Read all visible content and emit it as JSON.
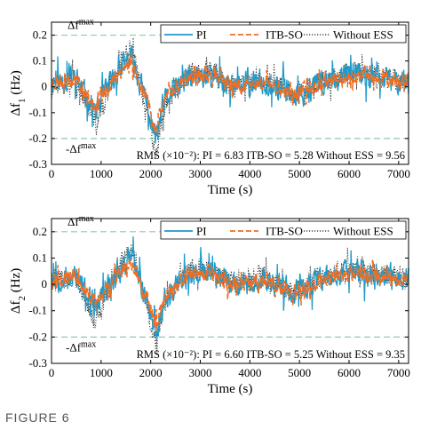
{
  "figure_label": "FIGURE 6",
  "chart_data": [
    {
      "type": "line",
      "xlabel": "Time (s)",
      "ylabel_main": "Δf",
      "ylabel_sub": "1",
      "ylabel_unit": " (Hz)",
      "xlim": [
        0,
        7200
      ],
      "ylim": [
        -0.3,
        0.25
      ],
      "xticks": [
        0,
        1000,
        2000,
        3000,
        4000,
        5000,
        6000,
        7000
      ],
      "yticks": [
        -0.3,
        -0.2,
        -0.1,
        0,
        0.1,
        0.2
      ],
      "ytick_labels": [
        "-0.3",
        "-0.2",
        "-0.1",
        "0",
        "0.1",
        "0.2"
      ],
      "grid": false,
      "legend_position": "top-right",
      "limit_value": 0.2,
      "limit_label_upper": "Δf",
      "limit_label_lower": "-Δf",
      "limit_sup": "max",
      "rms_text": "RMS (×10⁻²): PI = 6.83  ITB-SO = 5.28  Without ESS = 9.56",
      "series": [
        {
          "name": "PI",
          "color": "#1f9ac9",
          "style": "solid",
          "amplitude": 0.065,
          "seed": 11,
          "x": [
            0,
            500,
            900,
            1000,
            1300,
            1600,
            1900,
            2100,
            2300,
            2700,
            3200,
            3700,
            4300,
            4900,
            5500,
            6100,
            6600,
            7200
          ],
          "y": [
            0.02,
            0.03,
            -0.1,
            -0.05,
            0.05,
            0.12,
            -0.05,
            -0.2,
            -0.05,
            0.03,
            0.05,
            0.0,
            0.02,
            -0.03,
            0.02,
            0.05,
            0.03,
            0.02
          ]
        },
        {
          "name": "ITB-SO",
          "color": "#f26d21",
          "style": "dashed",
          "amplitude": 0.04,
          "seed": 23,
          "x": [
            0,
            500,
            900,
            1000,
            1300,
            1600,
            1900,
            2100,
            2300,
            2700,
            3200,
            3700,
            4300,
            4900,
            5500,
            6100,
            6600,
            7200
          ],
          "y": [
            0.02,
            0.03,
            -0.08,
            -0.04,
            0.04,
            0.1,
            -0.04,
            -0.17,
            -0.04,
            0.03,
            0.04,
            0.0,
            0.02,
            -0.03,
            0.02,
            0.04,
            0.03,
            0.02
          ]
        },
        {
          "name": "Without ESS",
          "color": "#222222",
          "style": "dotted",
          "amplitude": 0.055,
          "seed": 37,
          "x": [
            0,
            500,
            900,
            1000,
            1300,
            1600,
            1900,
            2100,
            2300,
            2700,
            3200,
            3700,
            4300,
            4900,
            5500,
            6100,
            6600,
            7200
          ],
          "y": [
            0.02,
            0.03,
            -0.15,
            -0.1,
            0.06,
            0.15,
            -0.07,
            -0.25,
            -0.06,
            0.04,
            0.06,
            0.0,
            0.03,
            -0.04,
            0.03,
            0.06,
            0.04,
            0.02
          ]
        }
      ]
    },
    {
      "type": "line",
      "xlabel": "Time (s)",
      "ylabel_main": "Δf",
      "ylabel_sub": "2",
      "ylabel_unit": " (Hz)",
      "xlim": [
        0,
        7200
      ],
      "ylim": [
        -0.3,
        0.25
      ],
      "xticks": [
        0,
        1000,
        2000,
        3000,
        4000,
        5000,
        6000,
        7000
      ],
      "yticks": [
        -0.3,
        -0.2,
        -0.1,
        0,
        0.1,
        0.2
      ],
      "ytick_labels": [
        "-0.3",
        "-0.2",
        "-0.1",
        "0",
        "0.1",
        "0.2"
      ],
      "grid": false,
      "legend_position": "top-right",
      "limit_value": 0.2,
      "limit_label_upper": "Δf",
      "limit_label_lower": "-Δf",
      "limit_sup": "max",
      "rms_text": "RMS (×10⁻²): PI = 6.60  ITB-SO = 5.25  Without ESS = 9.35",
      "series": [
        {
          "name": "PI",
          "color": "#1f9ac9",
          "style": "solid",
          "amplitude": 0.065,
          "seed": 53,
          "x": [
            0,
            500,
            900,
            1000,
            1300,
            1600,
            1900,
            2100,
            2300,
            2700,
            3200,
            3700,
            4300,
            4900,
            5500,
            6100,
            6600,
            7200
          ],
          "y": [
            0.02,
            0.03,
            -0.1,
            -0.06,
            0.04,
            0.11,
            -0.05,
            -0.18,
            -0.05,
            0.03,
            0.05,
            0.0,
            0.02,
            -0.03,
            0.02,
            0.05,
            0.03,
            0.02
          ]
        },
        {
          "name": "ITB-SO",
          "color": "#f26d21",
          "style": "dashed",
          "amplitude": 0.04,
          "seed": 67,
          "x": [
            0,
            500,
            900,
            1000,
            1300,
            1600,
            1900,
            2100,
            2300,
            2700,
            3200,
            3700,
            4300,
            4900,
            5500,
            6100,
            6600,
            7200
          ],
          "y": [
            0.02,
            0.03,
            -0.08,
            -0.05,
            0.03,
            0.09,
            -0.04,
            -0.15,
            -0.04,
            0.03,
            0.04,
            0.0,
            0.02,
            -0.03,
            0.02,
            0.04,
            0.03,
            0.02
          ]
        },
        {
          "name": "Without ESS",
          "color": "#222222",
          "style": "dotted",
          "amplitude": 0.055,
          "seed": 79,
          "x": [
            0,
            500,
            900,
            1000,
            1300,
            1600,
            1900,
            2100,
            2300,
            2700,
            3200,
            3700,
            4300,
            4900,
            5500,
            6100,
            6600,
            7200
          ],
          "y": [
            0.02,
            0.03,
            -0.15,
            -0.1,
            0.05,
            0.14,
            -0.07,
            -0.23,
            -0.06,
            0.04,
            0.06,
            0.0,
            0.03,
            -0.04,
            0.03,
            0.06,
            0.04,
            0.02
          ]
        }
      ]
    }
  ]
}
